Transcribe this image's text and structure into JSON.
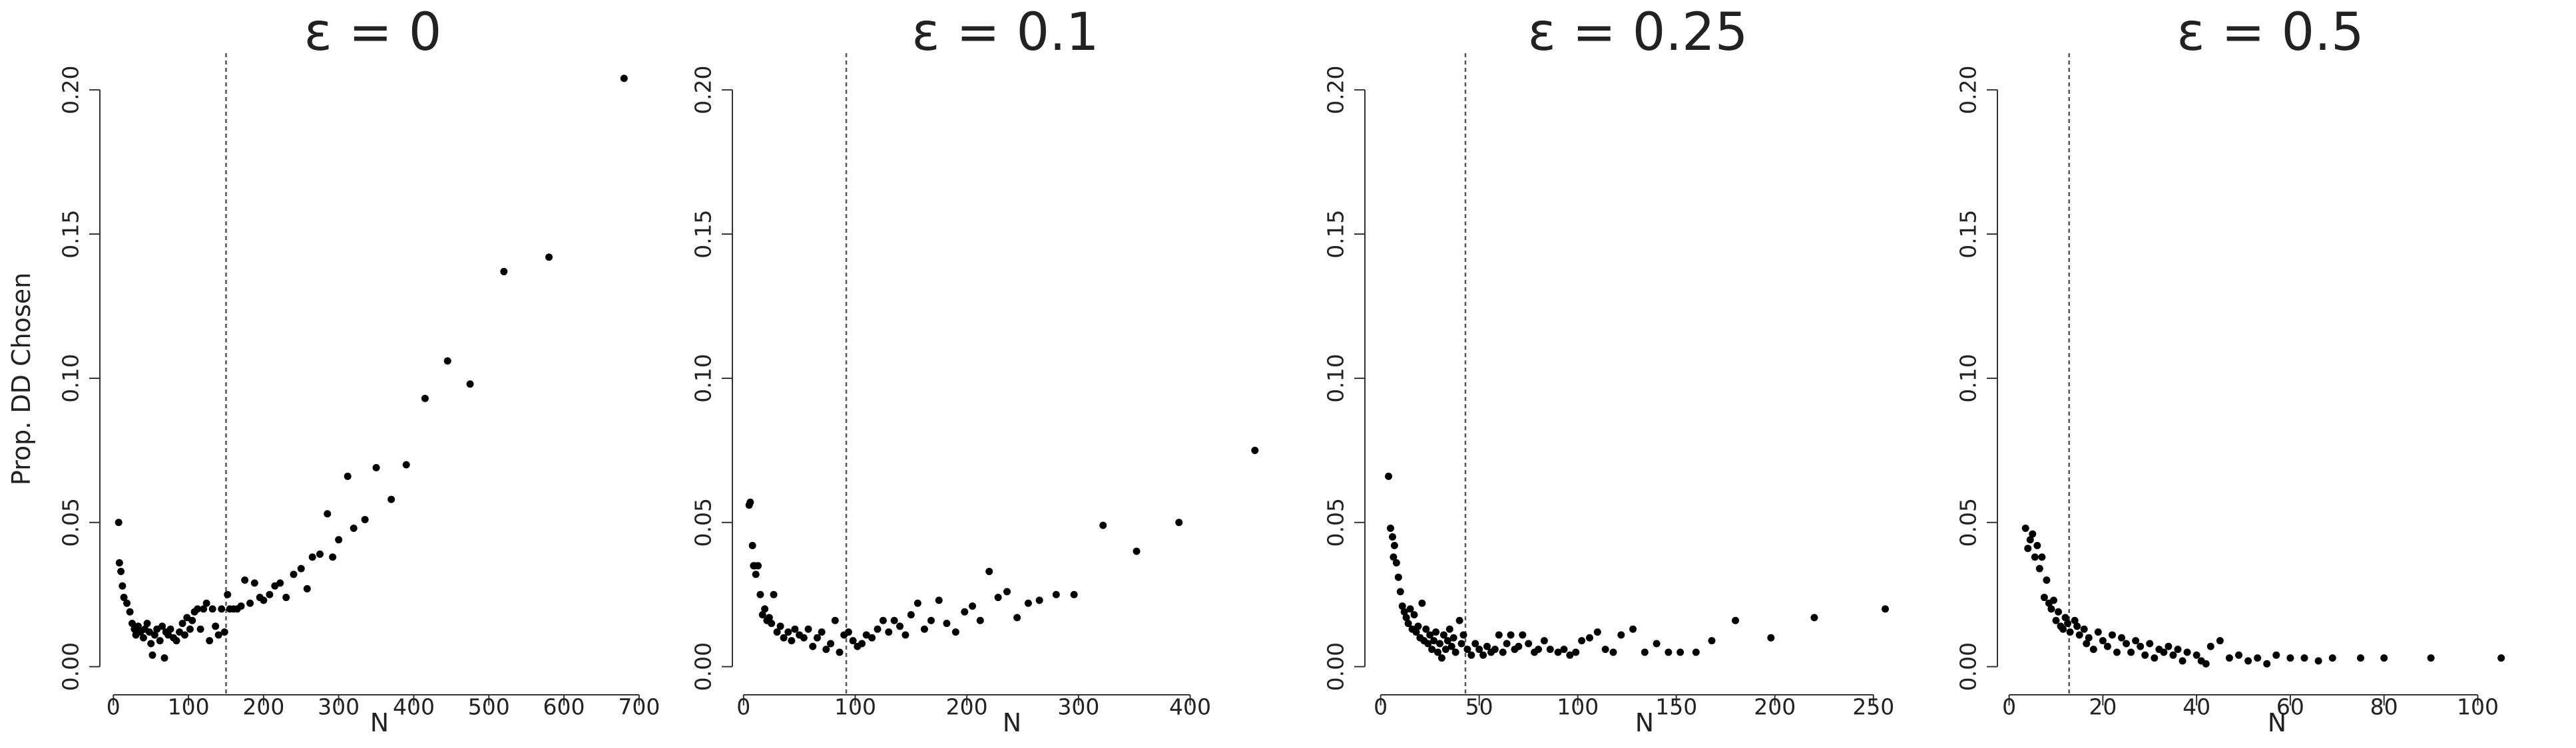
{
  "chart_data": [
    {
      "type": "scatter",
      "title": "ε = 0",
      "xlabel": "N",
      "ylabel": "Prop. DD Chosen",
      "color": "#000000",
      "vline": 150,
      "xlim": [
        -18,
        709
      ],
      "ylim": [
        -0.004,
        0.2035
      ],
      "xticks": [
        0,
        100,
        200,
        300,
        400,
        500,
        600,
        700
      ],
      "yticks": [
        {
          "value": 0,
          "label": "0.00"
        },
        {
          "value": 0.05,
          "label": "0.05"
        },
        {
          "value": 0.1,
          "label": "0.10"
        },
        {
          "value": 0.15,
          "label": "0.15"
        },
        {
          "value": 0.2,
          "label": "0.20"
        }
      ],
      "x": [
        7,
        8,
        10,
        12,
        14,
        18,
        22,
        25,
        28,
        30,
        33,
        36,
        40,
        42,
        45,
        48,
        50,
        52,
        55,
        58,
        62,
        65,
        68,
        70,
        73,
        76,
        80,
        84,
        88,
        92,
        95,
        98,
        102,
        105,
        108,
        112,
        116,
        120,
        124,
        128,
        132,
        136,
        140,
        144,
        148,
        152,
        155,
        160,
        165,
        170,
        175,
        182,
        188,
        195,
        200,
        208,
        215,
        222,
        230,
        240,
        250,
        258,
        265,
        275,
        285,
        292,
        300,
        312,
        320,
        335,
        350,
        370,
        390,
        415,
        445,
        475,
        520,
        580,
        680
      ],
      "values": [
        0.05,
        0.036,
        0.033,
        0.028,
        0.024,
        0.022,
        0.019,
        0.015,
        0.013,
        0.011,
        0.014,
        0.012,
        0.01,
        0.013,
        0.015,
        0.012,
        0.008,
        0.004,
        0.011,
        0.013,
        0.009,
        0.014,
        0.003,
        0.012,
        0.011,
        0.013,
        0.01,
        0.009,
        0.012,
        0.015,
        0.011,
        0.017,
        0.013,
        0.016,
        0.019,
        0.02,
        0.013,
        0.02,
        0.022,
        0.009,
        0.02,
        0.014,
        0.011,
        0.02,
        0.012,
        0.025,
        0.02,
        0.02,
        0.02,
        0.021,
        0.03,
        0.022,
        0.029,
        0.024,
        0.023,
        0.025,
        0.028,
        0.029,
        0.024,
        0.032,
        0.034,
        0.027,
        0.038,
        0.039,
        0.053,
        0.038,
        0.044,
        0.066,
        0.048,
        0.051,
        0.069,
        0.058,
        0.07,
        0.093,
        0.106,
        0.098,
        0.137,
        0.142,
        0.204
      ]
    },
    {
      "type": "scatter",
      "title": "ε = 0.1",
      "xlabel": "N",
      "color": "#000000",
      "vline": 92,
      "xlim": [
        -10,
        479
      ],
      "ylim": [
        -0.004,
        0.2035
      ],
      "xticks": [
        0,
        100,
        200,
        300,
        400
      ],
      "yticks": [
        {
          "value": 0,
          "label": "0.00"
        },
        {
          "value": 0.05,
          "label": "0.05"
        },
        {
          "value": 0.1,
          "label": "0.10"
        },
        {
          "value": 0.15,
          "label": "0.15"
        },
        {
          "value": 0.2,
          "label": "0.20"
        }
      ],
      "x": [
        5,
        6,
        8,
        9,
        10,
        11,
        13,
        15,
        17,
        19,
        21,
        23,
        25,
        27,
        30,
        33,
        36,
        40,
        43,
        46,
        50,
        54,
        58,
        62,
        66,
        70,
        74,
        78,
        82,
        86,
        90,
        94,
        98,
        102,
        106,
        110,
        115,
        120,
        125,
        130,
        135,
        140,
        145,
        150,
        156,
        162,
        168,
        175,
        182,
        190,
        198,
        205,
        212,
        220,
        228,
        236,
        245,
        255,
        265,
        280,
        296,
        322,
        352,
        390,
        458
      ],
      "values": [
        0.056,
        0.057,
        0.042,
        0.035,
        0.035,
        0.032,
        0.035,
        0.025,
        0.018,
        0.02,
        0.016,
        0.017,
        0.015,
        0.025,
        0.012,
        0.014,
        0.01,
        0.012,
        0.009,
        0.013,
        0.011,
        0.01,
        0.013,
        0.007,
        0.01,
        0.012,
        0.006,
        0.008,
        0.016,
        0.005,
        0.011,
        0.012,
        0.009,
        0.007,
        0.008,
        0.011,
        0.01,
        0.013,
        0.016,
        0.012,
        0.016,
        0.014,
        0.011,
        0.018,
        0.022,
        0.013,
        0.016,
        0.023,
        0.015,
        0.012,
        0.019,
        0.021,
        0.016,
        0.033,
        0.024,
        0.026,
        0.017,
        0.022,
        0.023,
        0.025,
        0.025,
        0.049,
        0.04,
        0.05,
        0.075
      ]
    },
    {
      "type": "scatter",
      "title": "ε = 0.25",
      "xlabel": "N",
      "color": "#000000",
      "vline": 43,
      "xlim": [
        -8,
        269
      ],
      "ylim": [
        -0.004,
        0.2035
      ],
      "xticks": [
        0,
        50,
        100,
        150,
        200,
        250
      ],
      "yticks": [
        {
          "value": 0,
          "label": "0.00"
        },
        {
          "value": 0.05,
          "label": "0.05"
        },
        {
          "value": 0.1,
          "label": "0.10"
        },
        {
          "value": 0.15,
          "label": "0.15"
        },
        {
          "value": 0.2,
          "label": "0.20"
        }
      ],
      "x": [
        4,
        5,
        6,
        6.5,
        7,
        8,
        9,
        10,
        11,
        12,
        13,
        14,
        15,
        16,
        17,
        18,
        19,
        20,
        21,
        22,
        23,
        24,
        25,
        26,
        27,
        28,
        29,
        30,
        31,
        32,
        33,
        34,
        35,
        36,
        37,
        38,
        40,
        41,
        42,
        44,
        46,
        48,
        50,
        52,
        54,
        56,
        58,
        60,
        62,
        64,
        66,
        68,
        70,
        72,
        75,
        78,
        80,
        83,
        86,
        90,
        93,
        96,
        99,
        102,
        106,
        110,
        114,
        118,
        122,
        128,
        134,
        140,
        146,
        152,
        160,
        168,
        180,
        198,
        220,
        256
      ],
      "values": [
        0.066,
        0.048,
        0.045,
        0.038,
        0.042,
        0.036,
        0.031,
        0.026,
        0.021,
        0.019,
        0.017,
        0.015,
        0.02,
        0.013,
        0.018,
        0.012,
        0.014,
        0.01,
        0.022,
        0.009,
        0.013,
        0.008,
        0.011,
        0.006,
        0.009,
        0.012,
        0.005,
        0.008,
        0.003,
        0.011,
        0.006,
        0.009,
        0.013,
        0.007,
        0.01,
        0.005,
        0.016,
        0.008,
        0.011,
        0.006,
        0.004,
        0.008,
        0.006,
        0.004,
        0.007,
        0.005,
        0.006,
        0.011,
        0.005,
        0.008,
        0.011,
        0.006,
        0.007,
        0.011,
        0.008,
        0.005,
        0.006,
        0.009,
        0.006,
        0.005,
        0.006,
        0.004,
        0.005,
        0.009,
        0.01,
        0.012,
        0.006,
        0.005,
        0.011,
        0.013,
        0.005,
        0.008,
        0.005,
        0.005,
        0.005,
        0.009,
        0.016,
        0.01,
        0.017,
        0.02
      ]
    },
    {
      "type": "scatter",
      "title": "ε = 0.5",
      "xlabel": "N",
      "color": "#000000",
      "vline": 12.8,
      "xlim": [
        -2.5,
        114
      ],
      "ylim": [
        -0.004,
        0.2035
      ],
      "xticks": [
        0,
        20,
        40,
        60,
        80,
        100
      ],
      "yticks": [
        {
          "value": 0,
          "label": "0.00"
        },
        {
          "value": 0.05,
          "label": "0.05"
        },
        {
          "value": 0.1,
          "label": "0.10"
        },
        {
          "value": 0.15,
          "label": "0.15"
        },
        {
          "value": 0.2,
          "label": "0.20"
        }
      ],
      "x": [
        3.5,
        4,
        4.5,
        5,
        5.5,
        6,
        6.5,
        7,
        7.5,
        8,
        8.5,
        9,
        9.5,
        10,
        10.5,
        11,
        11.5,
        12,
        12.5,
        13,
        14,
        14.5,
        15,
        16,
        16.5,
        17,
        18,
        19,
        20,
        21,
        22,
        23,
        24,
        25,
        26,
        27,
        28,
        29,
        30,
        31,
        32,
        33,
        34,
        35,
        36,
        37,
        38,
        40,
        41,
        42,
        43,
        45,
        47,
        49,
        51,
        53,
        55,
        57,
        60,
        63,
        66,
        69,
        75,
        80,
        90,
        105
      ],
      "values": [
        0.048,
        0.041,
        0.044,
        0.046,
        0.038,
        0.042,
        0.034,
        0.038,
        0.024,
        0.03,
        0.022,
        0.02,
        0.023,
        0.016,
        0.019,
        0.014,
        0.013,
        0.017,
        0.015,
        0.012,
        0.016,
        0.014,
        0.011,
        0.013,
        0.008,
        0.01,
        0.006,
        0.012,
        0.009,
        0.007,
        0.011,
        0.005,
        0.01,
        0.008,
        0.005,
        0.009,
        0.007,
        0.004,
        0.008,
        0.003,
        0.006,
        0.005,
        0.007,
        0.004,
        0.006,
        0.002,
        0.005,
        0.004,
        0.002,
        0.001,
        0.007,
        0.009,
        0.003,
        0.004,
        0.002,
        0.003,
        0.001,
        0.004,
        0.003,
        0.003,
        0.002,
        0.003,
        0.003,
        0.003,
        0.003,
        0.003
      ]
    }
  ]
}
